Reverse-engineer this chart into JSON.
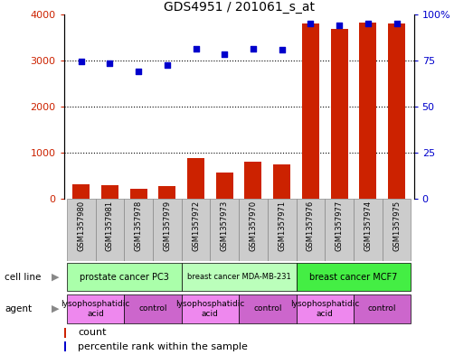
{
  "title": "GDS4951 / 201061_s_at",
  "samples": [
    "GSM1357980",
    "GSM1357981",
    "GSM1357978",
    "GSM1357979",
    "GSM1357972",
    "GSM1357973",
    "GSM1357970",
    "GSM1357971",
    "GSM1357976",
    "GSM1357977",
    "GSM1357974",
    "GSM1357975"
  ],
  "counts": [
    320,
    300,
    220,
    280,
    880,
    560,
    800,
    740,
    3800,
    3680,
    3820,
    3800
  ],
  "percentiles": [
    74.5,
    73.5,
    69.0,
    72.5,
    81.5,
    78.5,
    81.5,
    81.0,
    95.0,
    94.0,
    95.0,
    95.0
  ],
  "cell_line_groups": [
    {
      "label": "prostate cancer PC3",
      "start": 0,
      "end": 3,
      "color": "#aaffaa"
    },
    {
      "label": "breast cancer MDA-MB-231",
      "start": 4,
      "end": 7,
      "color": "#bbffbb"
    },
    {
      "label": "breast cancer MCF7",
      "start": 8,
      "end": 11,
      "color": "#44ee44"
    }
  ],
  "agent_groups": [
    {
      "label": "lysophosphatidic\nacid",
      "start": 0,
      "end": 1,
      "color": "#ee88ee"
    },
    {
      "label": "control",
      "start": 2,
      "end": 3,
      "color": "#cc66cc"
    },
    {
      "label": "lysophosphatidic\nacid",
      "start": 4,
      "end": 5,
      "color": "#ee88ee"
    },
    {
      "label": "control",
      "start": 6,
      "end": 7,
      "color": "#cc66cc"
    },
    {
      "label": "lysophosphatidic\nacid",
      "start": 8,
      "end": 9,
      "color": "#ee88ee"
    },
    {
      "label": "control",
      "start": 10,
      "end": 11,
      "color": "#cc66cc"
    }
  ],
  "bar_color": "#cc2200",
  "dot_color": "#0000cc",
  "ylim_left": [
    0,
    4000
  ],
  "ylim_right": [
    0,
    100
  ],
  "yticks_left": [
    0,
    1000,
    2000,
    3000,
    4000
  ],
  "yticks_right": [
    0,
    25,
    50,
    75,
    100
  ],
  "ytick_labels_right": [
    "0",
    "25",
    "50",
    "75",
    "100%"
  ],
  "grid_lines": [
    1000,
    2000,
    3000
  ],
  "bar_width": 0.6,
  "cell_line_label": "cell line",
  "agent_label": "agent",
  "legend_count_label": "count",
  "legend_pct_label": "percentile rank within the sample"
}
